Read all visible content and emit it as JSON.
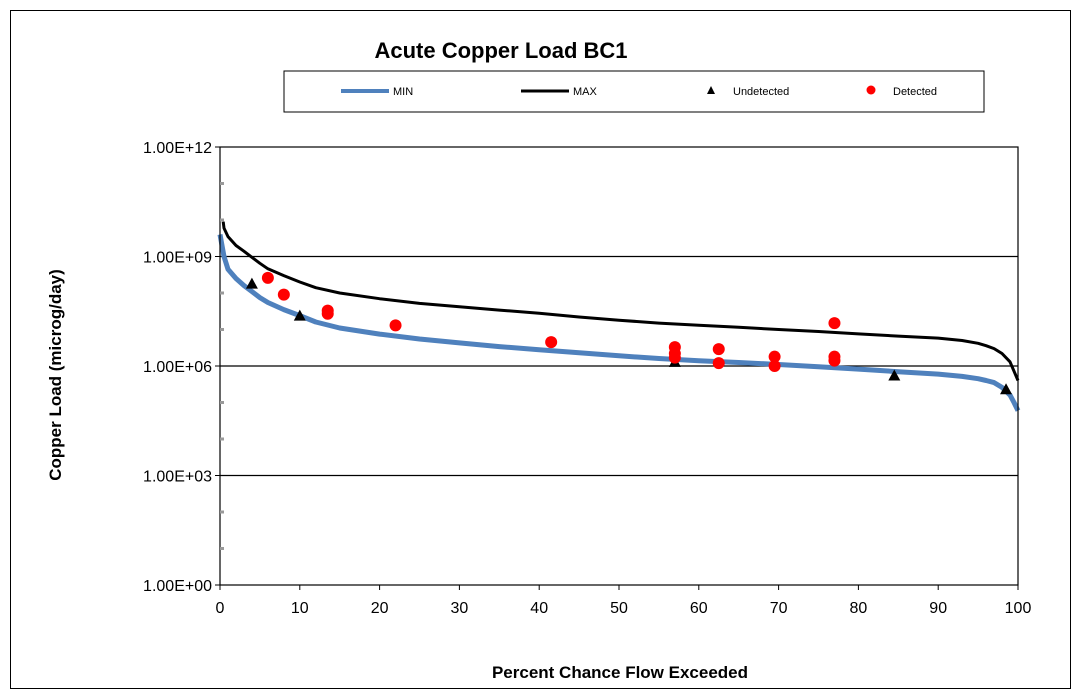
{
  "chart_data": {
    "type": "line",
    "title": "Acute Copper Load BC1",
    "xlabel": "Percent Chance Flow Exceeded",
    "ylabel": "Copper Load  (microg/day)",
    "xlim": [
      0,
      100
    ],
    "ylim": [
      1,
      1000000000000
    ],
    "y_scale": "log",
    "x_ticks": [
      0,
      10,
      20,
      30,
      40,
      50,
      60,
      70,
      80,
      90,
      100
    ],
    "y_ticks": [
      1,
      1000,
      1000000,
      1000000000,
      1000000000000
    ],
    "y_tick_labels": [
      "1.00E+00",
      "1.00E+03",
      "1.00E+06",
      "1.00E+09",
      "1.00E+12"
    ],
    "grid": "horizontal major",
    "legend_position": "top",
    "series": [
      {
        "name": "MIN",
        "kind": "line",
        "color": "#4f81bd",
        "x": [
          0,
          0.5,
          1,
          2,
          3,
          4,
          5,
          6,
          8,
          10,
          12,
          15,
          20,
          25,
          30,
          35,
          40,
          45,
          50,
          55,
          60,
          65,
          70,
          75,
          80,
          85,
          90,
          93,
          95,
          96,
          97,
          98,
          99,
          99.5,
          100
        ],
        "y": [
          4000000000.0,
          1000000000.0,
          450000000.0,
          250000000.0,
          160000000.0,
          110000000.0,
          75000000.0,
          55000000.0,
          35000000.0,
          24000000.0,
          16000000.0,
          11000000.0,
          7500000.0,
          5500000.0,
          4300000.0,
          3400000.0,
          2800000.0,
          2300000.0,
          1900000.0,
          1600000.0,
          1400000.0,
          1250000.0,
          1100000.0,
          950000.0,
          820000.0,
          700000.0,
          600000.0,
          520000.0,
          450000.0,
          400000.0,
          350000.0,
          260000.0,
          160000.0,
          100000.0,
          60000.0
        ]
      },
      {
        "name": "MAX",
        "kind": "line",
        "color": "#000000",
        "x": [
          0.4,
          0.5,
          1,
          2,
          3,
          4,
          5,
          6,
          8,
          10,
          12,
          15,
          20,
          25,
          30,
          35,
          40,
          45,
          50,
          55,
          60,
          65,
          70,
          75,
          80,
          85,
          90,
          93,
          95,
          96,
          97,
          98,
          99,
          100
        ],
        "y": [
          9000000000.0,
          6000000000.0,
          3500000000.0,
          2000000000.0,
          1400000000.0,
          950000000.0,
          650000000.0,
          460000000.0,
          300000000.0,
          200000000.0,
          140000000.0,
          100000000.0,
          70000000.0,
          52000000.0,
          42000000.0,
          34000000.0,
          28000000.0,
          22000000.0,
          18000000.0,
          15000000.0,
          13000000.0,
          11500000.0,
          10000000.0,
          8800000.0,
          7600000.0,
          6600000.0,
          5800000.0,
          5000000.0,
          4200000.0,
          3600000.0,
          3000000.0,
          2200000.0,
          1300000.0,
          400000.0
        ]
      },
      {
        "name": "Undetected",
        "kind": "scatter",
        "marker": "triangle",
        "color": "#000000",
        "x": [
          4,
          10,
          57,
          84.5,
          98.5
        ],
        "y": [
          180000000.0,
          24000000.0,
          1300000.0,
          550000.0,
          230000.0
        ]
      },
      {
        "name": "Detected",
        "kind": "scatter",
        "marker": "circle",
        "color": "#ff0000",
        "x": [
          6,
          8,
          13.5,
          13.5,
          22,
          41.5,
          57,
          57,
          57,
          62.5,
          62.5,
          69.5,
          69.5,
          77,
          77,
          77
        ],
        "y": [
          260000000.0,
          90000000.0,
          33000000.0,
          27000000.0,
          13000000.0,
          4500000.0,
          3300000.0,
          2200000.0,
          1700000.0,
          2900000.0,
          1200000.0,
          1800000.0,
          1000000.0,
          15000000.0,
          1800000.0,
          1400000.0
        ]
      }
    ]
  }
}
